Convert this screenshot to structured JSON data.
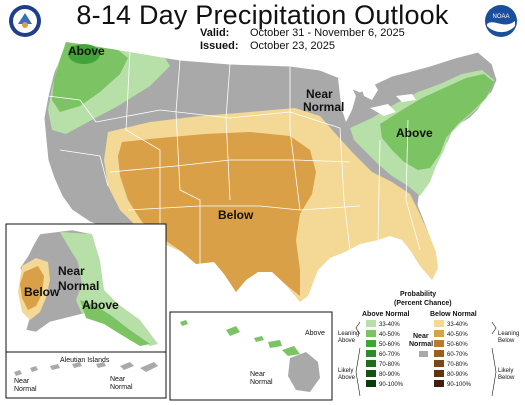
{
  "title": "8-14 Day Precipitation Outlook",
  "valid_label": "Valid:",
  "valid_value": "October 31 - November 6, 2025",
  "issued_label": "Issued:",
  "issued_value": "October 23, 2025",
  "logos": {
    "left": "doc-seal-icon",
    "right": "noaa-logo-icon"
  },
  "colors": {
    "below_33_40": "#f3d896",
    "below_40_50": "#d9a048",
    "near_normal": "#a9a9a9",
    "above_33_40": "#b6e0a8",
    "above_40_50": "#7cc364",
    "above_50_60": "#43a33a"
  },
  "map_labels": {
    "conus_above_nw": "Above",
    "conus_near_normal": "Near\nNormal",
    "conus_above_ne": "Above",
    "conus_below": "Below",
    "ak_near_normal": "Near\nNormal",
    "ak_below": "Below",
    "ak_above": "Above",
    "hi_above": "Above",
    "hi_near_normal": "Near\nNormal",
    "aleutian_label": "Aleutian Islands",
    "aleutian_near_normal": "Near\nNormal",
    "aleutian_near_normal_2": "Near\nNormal"
  },
  "legend": {
    "title": "Probability\n(Percent Chance)",
    "above_header": "Above Normal",
    "below_header": "Below Normal",
    "near_header": "Near\nNormal",
    "leaning_above": "Leaning\nAbove",
    "likely_above": "Likely\nAbove",
    "leaning_below": "Leaning\nBelow",
    "likely_below": "Likely\nBelow",
    "bins": [
      "33-40%",
      "40-50%",
      "50-60%",
      "60-70%",
      "70-80%",
      "80-90%",
      "90-100%"
    ],
    "above_colors": [
      "#b6e0a8",
      "#7cc364",
      "#43a33a",
      "#2e8a2a",
      "#1f6e1f",
      "#145214",
      "#0b3a0b"
    ],
    "below_colors": [
      "#f3d896",
      "#d9a048",
      "#b87a2e",
      "#9b5e22",
      "#7e4618",
      "#5f3210",
      "#40200a"
    ],
    "near_color": "#a9a9a9"
  }
}
